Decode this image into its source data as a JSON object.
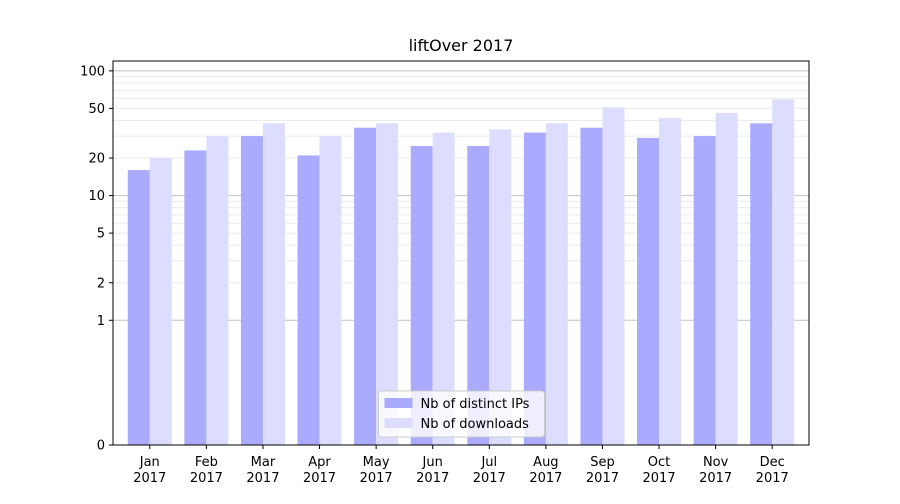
{
  "chart_data": {
    "type": "bar",
    "title": "liftOver 2017",
    "xlabel": "",
    "ylabel": "",
    "y_scale": "symlog",
    "ylim": [
      0,
      120
    ],
    "y_ticks": [
      0,
      1,
      2,
      5,
      10,
      20,
      50,
      100
    ],
    "grid": "y-major-and-minor",
    "legend_position": "lower-center",
    "categories": [
      [
        "Jan",
        "2017"
      ],
      [
        "Feb",
        "2017"
      ],
      [
        "Mar",
        "2017"
      ],
      [
        "Apr",
        "2017"
      ],
      [
        "May",
        "2017"
      ],
      [
        "Jun",
        "2017"
      ],
      [
        "Jul",
        "2017"
      ],
      [
        "Aug",
        "2017"
      ],
      [
        "Sep",
        "2017"
      ],
      [
        "Oct",
        "2017"
      ],
      [
        "Nov",
        "2017"
      ],
      [
        "Dec",
        "2017"
      ]
    ],
    "series": [
      {
        "name": "Nb of distinct IPs",
        "color": "#aaaaff",
        "values": [
          16,
          23,
          30,
          21,
          35,
          25,
          25,
          32,
          35,
          29,
          30,
          38
        ]
      },
      {
        "name": "Nb of downloads",
        "color": "#ddddff",
        "values": [
          20,
          30,
          38,
          30,
          38,
          32,
          34,
          38,
          51,
          42,
          46,
          59
        ]
      }
    ]
  }
}
